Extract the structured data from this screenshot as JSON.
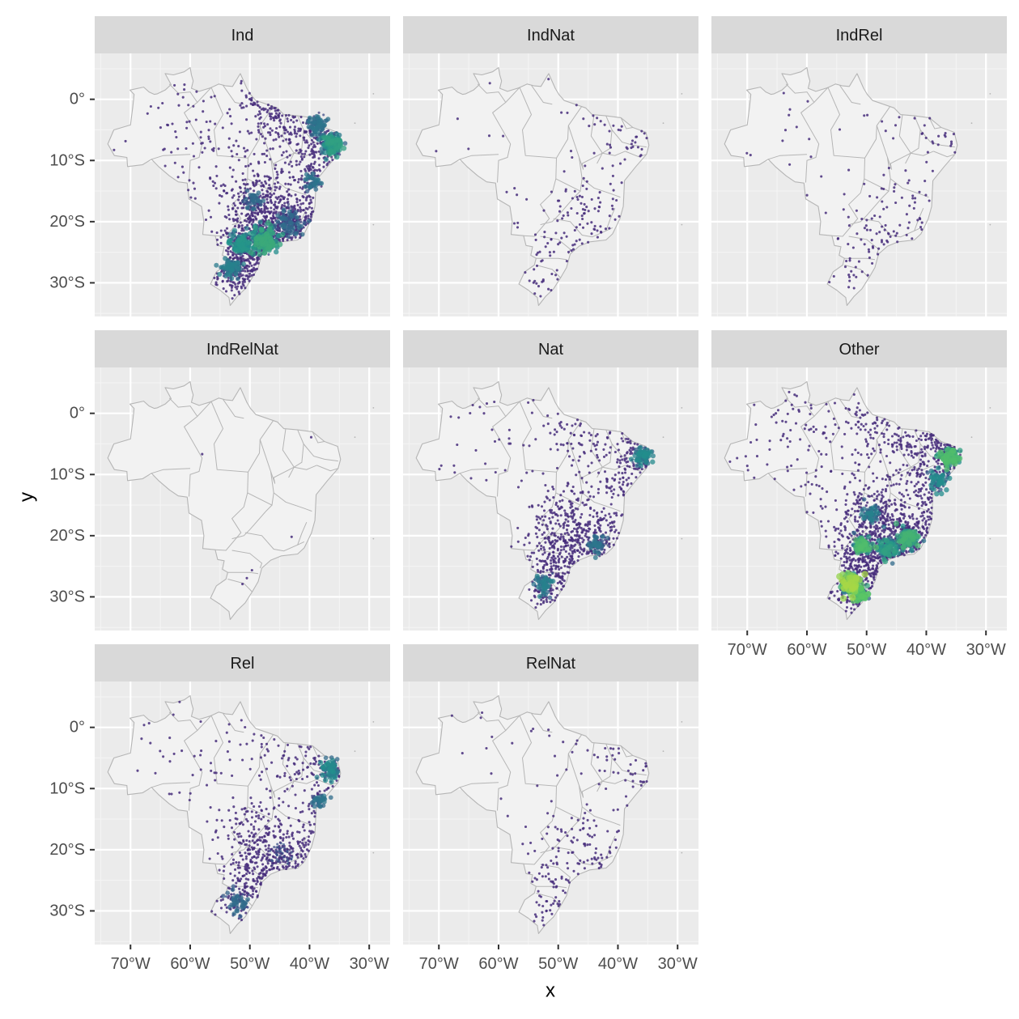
{
  "chart_data": {
    "type": "scatter",
    "subtype": "faceted map of point locations over Brazil, density-coloured (viridis)",
    "xlabel": "x",
    "ylabel": "y",
    "x_ticks": [
      -70,
      -60,
      -50,
      -40,
      -30
    ],
    "x_tick_labels": [
      "70°W",
      "60°W",
      "50°W",
      "40°W",
      "30°W"
    ],
    "y_ticks": [
      0,
      -10,
      -20,
      -30
    ],
    "y_tick_labels": [
      "0°",
      "10°S",
      "20°S",
      "30°S"
    ],
    "xlim": [
      -76,
      -26.5
    ],
    "ylim": [
      -35.5,
      7.5
    ],
    "grid": true,
    "density_colors": [
      "#440154",
      "#3b528b",
      "#21918c",
      "#5ec962",
      "#fde725"
    ],
    "point_color": "#472d7b",
    "facets": [
      {
        "label": "Ind",
        "intensity": 1.0,
        "clusters": [
          {
            "lon": -36.2,
            "lat": -7.4,
            "spread": 1.5,
            "weight": 30,
            "heat": 0.55
          },
          {
            "lon": -38.6,
            "lat": -4.2,
            "spread": 1.4,
            "weight": 18,
            "heat": 0.35
          },
          {
            "lon": -39.5,
            "lat": -13.5,
            "spread": 1.2,
            "weight": 10,
            "heat": 0.35
          },
          {
            "lon": -47.5,
            "lat": -22.8,
            "spread": 1.8,
            "weight": 40,
            "heat": 0.6
          },
          {
            "lon": -51.5,
            "lat": -23.5,
            "spread": 1.6,
            "weight": 25,
            "heat": 0.5
          },
          {
            "lon": -53.0,
            "lat": -27.5,
            "spread": 1.4,
            "weight": 18,
            "heat": 0.4
          },
          {
            "lon": -43.5,
            "lat": -20.0,
            "spread": 2.0,
            "weight": 25,
            "heat": 0.3
          },
          {
            "lon": -49.5,
            "lat": -16.5,
            "spread": 1.3,
            "weight": 10,
            "heat": 0.3
          }
        ]
      },
      {
        "label": "IndNat",
        "intensity": 0.12,
        "clusters": []
      },
      {
        "label": "IndRel",
        "intensity": 0.1,
        "clusters": []
      },
      {
        "label": "IndRelNat",
        "intensity": 0.004,
        "clusters": []
      },
      {
        "label": "Nat",
        "intensity": 0.55,
        "clusters": [
          {
            "lon": -35.8,
            "lat": -7.0,
            "spread": 1.3,
            "weight": 18,
            "heat": 0.45
          },
          {
            "lon": -43.5,
            "lat": -21.5,
            "spread": 1.4,
            "weight": 14,
            "heat": 0.35
          },
          {
            "lon": -52.5,
            "lat": -28.0,
            "spread": 1.5,
            "weight": 14,
            "heat": 0.4
          }
        ]
      },
      {
        "label": "Other",
        "intensity": 1.0,
        "clusters": [
          {
            "lon": -36.0,
            "lat": -7.2,
            "spread": 1.3,
            "weight": 22,
            "heat": 0.7
          },
          {
            "lon": -38.0,
            "lat": -11.0,
            "spread": 1.4,
            "weight": 12,
            "heat": 0.45
          },
          {
            "lon": -50.8,
            "lat": -21.5,
            "spread": 1.3,
            "weight": 18,
            "heat": 0.7
          },
          {
            "lon": -46.5,
            "lat": -22.0,
            "spread": 1.6,
            "weight": 20,
            "heat": 0.55
          },
          {
            "lon": -43.0,
            "lat": -20.5,
            "spread": 1.5,
            "weight": 20,
            "heat": 0.65
          },
          {
            "lon": -52.8,
            "lat": -27.8,
            "spread": 1.4,
            "weight": 22,
            "heat": 0.9
          },
          {
            "lon": -51.2,
            "lat": -29.5,
            "spread": 1.2,
            "weight": 14,
            "heat": 0.75
          },
          {
            "lon": -49.5,
            "lat": -16.5,
            "spread": 1.3,
            "weight": 10,
            "heat": 0.4
          }
        ]
      },
      {
        "label": "Rel",
        "intensity": 0.45,
        "clusters": [
          {
            "lon": -36.5,
            "lat": -7.0,
            "spread": 1.4,
            "weight": 16,
            "heat": 0.45
          },
          {
            "lon": -38.5,
            "lat": -12.0,
            "spread": 1.0,
            "weight": 8,
            "heat": 0.35
          },
          {
            "lon": -52.0,
            "lat": -28.5,
            "spread": 1.6,
            "weight": 12,
            "heat": 0.3
          },
          {
            "lon": -45.0,
            "lat": -21.0,
            "spread": 1.8,
            "weight": 10,
            "heat": 0.2
          }
        ]
      },
      {
        "label": "RelNat",
        "intensity": 0.14,
        "clusters": []
      }
    ]
  }
}
